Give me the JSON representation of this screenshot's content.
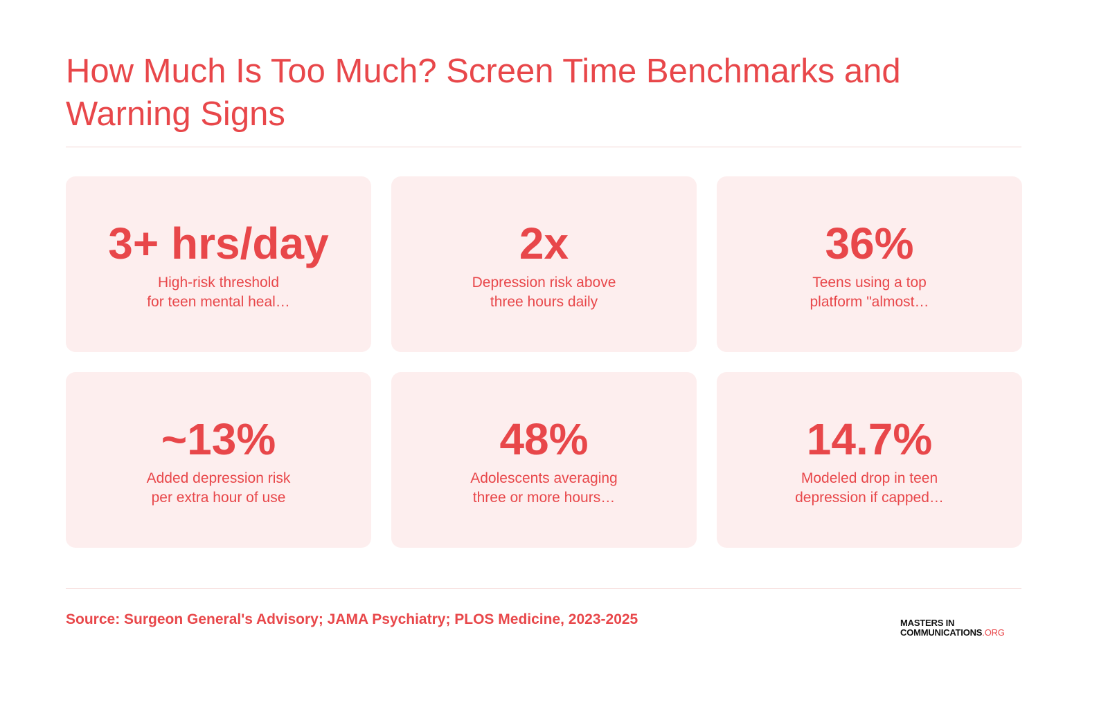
{
  "header": {
    "title": "How Much Is Too Much? Screen Time Benchmarks and Warning Signs"
  },
  "cards": [
    {
      "value": "3+ hrs/day",
      "lines": [
        "High-risk threshold",
        "for teen mental heal…"
      ]
    },
    {
      "value": "2x",
      "lines": [
        "Depression risk above",
        "three hours daily"
      ]
    },
    {
      "value": "36%",
      "lines": [
        "Teens using a top",
        "platform \"almost…"
      ]
    },
    {
      "value": "~13%",
      "lines": [
        "Added depression risk",
        "per extra hour of use"
      ]
    },
    {
      "value": "48%",
      "lines": [
        "Adolescents averaging",
        "three or more hours…"
      ]
    },
    {
      "value": "14.7%",
      "lines": [
        "Modeled drop in teen",
        "depression if capped…"
      ]
    }
  ],
  "footer": {
    "source": "Source: Surgeon General's Advisory; JAMA Psychiatry; PLOS Medicine, 2023-2025"
  },
  "logo": {
    "line1": "MASTERS IN",
    "line2": "COMMUNICATIONS",
    "suffix": ".ORG"
  }
}
